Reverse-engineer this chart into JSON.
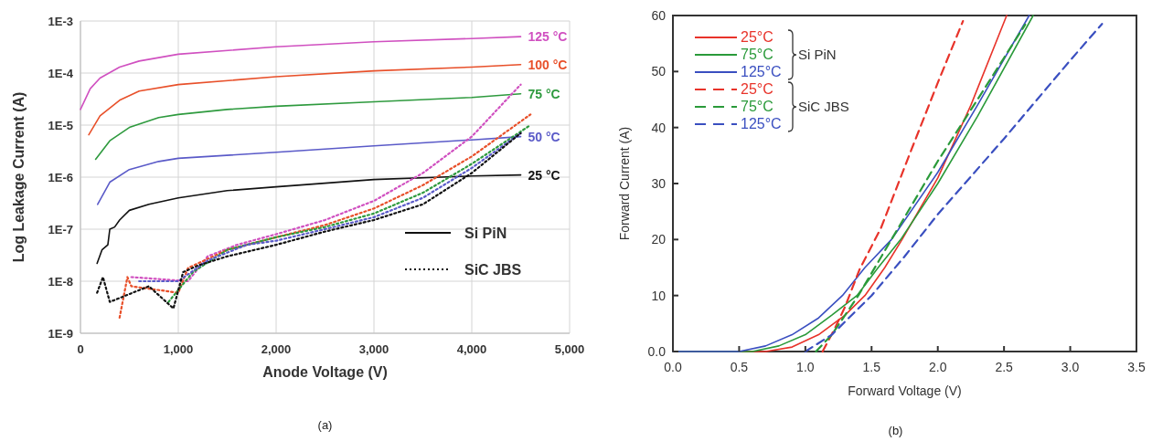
{
  "chart_data": [
    {
      "type": "line",
      "title": "(a)",
      "xlabel": "Anode Voltage (V)",
      "ylabel": "Log Leakage Current (A)",
      "log": "y",
      "grid": true,
      "annotations": [
        "Si PiN",
        "SiC JBS"
      ],
      "xlim": [
        0,
        5000
      ],
      "xticks": [
        0,
        {
          "value": 1000,
          "label": "1,000"
        },
        {
          "value": 2000,
          "label": "2,000"
        },
        {
          "value": 3000,
          "label": "3,000"
        },
        {
          "value": 4000,
          "label": "4,000"
        },
        {
          "value": 5000,
          "label": "5,000"
        }
      ],
      "ylim": [
        1e-09,
        0.001
      ],
      "yticks": [
        {
          "value": 1e-09,
          "label": "1E-9"
        },
        {
          "value": 1e-08,
          "label": "1E-8"
        },
        {
          "value": 1e-07,
          "label": "1E-7"
        },
        {
          "value": 1e-06,
          "label": "1E-6"
        },
        {
          "value": 1e-05,
          "label": "1E-5"
        },
        {
          "value": 0.0001,
          "label": "1E-4"
        },
        {
          "value": 0.001,
          "label": "1E-3"
        }
      ],
      "series": [
        {
          "name": "125 °C",
          "color": "#d050c0",
          "line_style": "solid",
          "x": [
            0,
            100,
            200,
            400,
            600,
            1000,
            2000,
            3000,
            4000,
            4500
          ],
          "values": [
            2e-05,
            5e-05,
            8e-05,
            0.00013,
            0.00017,
            0.00023,
            0.00032,
            0.0004,
            0.00046,
            0.0005
          ]
        },
        {
          "name": "100 °C",
          "color": "#e8502a",
          "line_style": "solid",
          "x": [
            85,
            200,
            400,
            600,
            1000,
            2000,
            3000,
            4000,
            4500
          ],
          "values": [
            6.5e-06,
            1.5e-05,
            3e-05,
            4.5e-05,
            6e-05,
            8.5e-05,
            0.00011,
            0.00013,
            0.000145
          ]
        },
        {
          "name": "75 °C",
          "color": "#2e9a3e",
          "line_style": "solid",
          "x": [
            155,
            300,
            500,
            800,
            1000,
            1500,
            2000,
            3000,
            4000,
            4500
          ],
          "values": [
            2.2e-06,
            5e-06,
            9e-06,
            1.4e-05,
            1.6e-05,
            2e-05,
            2.3e-05,
            2.8e-05,
            3.4e-05,
            4e-05
          ]
        },
        {
          "name": "50 °C",
          "color": "#5a5ac8",
          "line_style": "solid",
          "x": [
            175,
            300,
            500,
            800,
            1000,
            2000,
            3000,
            4000,
            4500
          ],
          "values": [
            3e-07,
            8e-07,
            1.4e-06,
            2e-06,
            2.3e-06,
            3e-06,
            4e-06,
            5.2e-06,
            6e-06
          ]
        },
        {
          "name": "25 °C",
          "color": "#111111",
          "line_style": "solid",
          "x": [
            170,
            220,
            280,
            300,
            350,
            400,
            500,
            700,
            1000,
            1500,
            2000,
            3000,
            4000,
            4500
          ],
          "values": [
            2.2e-08,
            4e-08,
            5e-08,
            1e-07,
            1.1e-07,
            1.5e-07,
            2.3e-07,
            3e-07,
            4e-07,
            5.5e-07,
            6.5e-07,
            9e-07,
            1.05e-06,
            1.1e-06
          ]
        },
        {
          "color": "#d050c0",
          "line_style": "dotted",
          "x": [
            520,
            1100,
            1300,
            1600,
            2000,
            2500,
            3000,
            3500,
            4000,
            4500
          ],
          "values": [
            1.2e-08,
            1e-08,
            3e-08,
            5e-08,
            8e-08,
            1.5e-07,
            3.5e-07,
            1.2e-06,
            6e-06,
            6e-05
          ]
        },
        {
          "color": "#e8502a",
          "line_style": "dotted",
          "x": [
            400,
            480,
            520,
            1000,
            1100,
            1500,
            2000,
            2500,
            3000,
            3500,
            4000,
            4600
          ],
          "values": [
            2e-09,
            1.2e-08,
            8e-09,
            6e-09,
            1.8e-08,
            4e-08,
            7e-08,
            1.2e-07,
            2.5e-07,
            7e-07,
            2.5e-06,
            1.6e-05
          ]
        },
        {
          "color": "#2e9a3e",
          "line_style": "dotted",
          "x": [
            900,
            1150,
            1500,
            2000,
            2500,
            3000,
            3500,
            4000,
            4600
          ],
          "values": [
            4e-09,
            1.5e-08,
            4e-08,
            7e-08,
            1.1e-07,
            2e-07,
            5e-07,
            1.8e-06,
            1e-05
          ]
        },
        {
          "color": "#5a5ac8",
          "line_style": "dotted",
          "x": [
            600,
            1000,
            1300,
            1700,
            2000,
            2500,
            3000,
            3500,
            4000,
            4500
          ],
          "values": [
            1e-08,
            1e-08,
            2.5e-08,
            5e-08,
            6e-08,
            1e-07,
            1.7e-07,
            4e-07,
            1.5e-06,
            7e-06
          ]
        },
        {
          "color": "#111111",
          "line_style": "dotted",
          "x": [
            170,
            230,
            300,
            700,
            950,
            1050,
            1200,
            1500,
            2000,
            2500,
            3000,
            3500,
            4000,
            4500
          ],
          "values": [
            6e-09,
            1.2e-08,
            4e-09,
            8e-09,
            3e-09,
            1.5e-08,
            2e-08,
            3e-08,
            5e-08,
            9e-08,
            1.5e-07,
            3e-07,
            1.2e-06,
            7e-06
          ]
        }
      ]
    },
    {
      "type": "line",
      "title": "(b)",
      "xlabel": "Forward Voltage (V)",
      "ylabel": "Forward Current (A)",
      "legend": "top left",
      "annotations": [
        "Si PiN",
        "SiC JBS"
      ],
      "xlim": [
        0,
        3.5
      ],
      "xticks": [
        {
          "value": 0,
          "label": "0.0"
        },
        0.5,
        {
          "value": 1,
          "label": "1.0"
        },
        1.5,
        {
          "value": 2,
          "label": "2.0"
        },
        2.5,
        {
          "value": 3,
          "label": "3.0"
        },
        3.5
      ],
      "ylim": [
        0,
        60
      ],
      "yticks": [
        {
          "value": 0,
          "label": "0.0"
        },
        10,
        20,
        30,
        40,
        50,
        60
      ],
      "series": [
        {
          "name": "25°C",
          "color": "#e8332a",
          "line_style": "solid",
          "x": [
            0,
            0.7,
            0.9,
            1.1,
            1.3,
            1.45,
            1.6,
            1.73,
            2.0,
            2.25,
            2.52
          ],
          "values": [
            0,
            0,
            0.8,
            3,
            6.5,
            10,
            15,
            20,
            31,
            44,
            60
          ]
        },
        {
          "name": "75°C",
          "color": "#2a9a3a",
          "line_style": "solid",
          "x": [
            0,
            0.6,
            0.8,
            1.0,
            1.2,
            1.39,
            1.55,
            1.72,
            2.0,
            2.3,
            2.72
          ],
          "values": [
            0,
            0,
            1,
            3,
            6.5,
            10,
            15,
            20,
            30,
            42,
            60
          ]
        },
        {
          "name": "125°C",
          "color": "#3a4fc0",
          "line_style": "solid",
          "x": [
            0,
            0.5,
            0.7,
            0.9,
            1.1,
            1.28,
            1.45,
            1.65,
            2.0,
            2.3,
            2.69
          ],
          "values": [
            0,
            0,
            1,
            3,
            6,
            10,
            15,
            20,
            32,
            44,
            60
          ]
        },
        {
          "name": "25°C",
          "color": "#e8332a",
          "line_style": "dashed",
          "x": [
            1.13,
            1.22,
            1.3,
            1.41,
            1.57,
            1.8,
            2.0,
            2.19
          ],
          "values": [
            0,
            4,
            8,
            14.7,
            22,
            36,
            48,
            59
          ]
        },
        {
          "name": "75°C",
          "color": "#2a9a3a",
          "line_style": "dashed",
          "x": [
            1.08,
            1.2,
            1.4,
            1.55,
            1.7,
            2.0,
            2.3,
            2.66
          ],
          "values": [
            0,
            3,
            10,
            16,
            22,
            34,
            45,
            58.4
          ]
        },
        {
          "name": "125°C",
          "color": "#3a4fc0",
          "line_style": "dashed",
          "x": [
            1.0,
            1.2,
            1.5,
            1.75,
            2.0,
            2.5,
            3.0,
            3.24
          ],
          "values": [
            0,
            3,
            10,
            17,
            24.5,
            38,
            52,
            58.5
          ]
        }
      ]
    }
  ]
}
